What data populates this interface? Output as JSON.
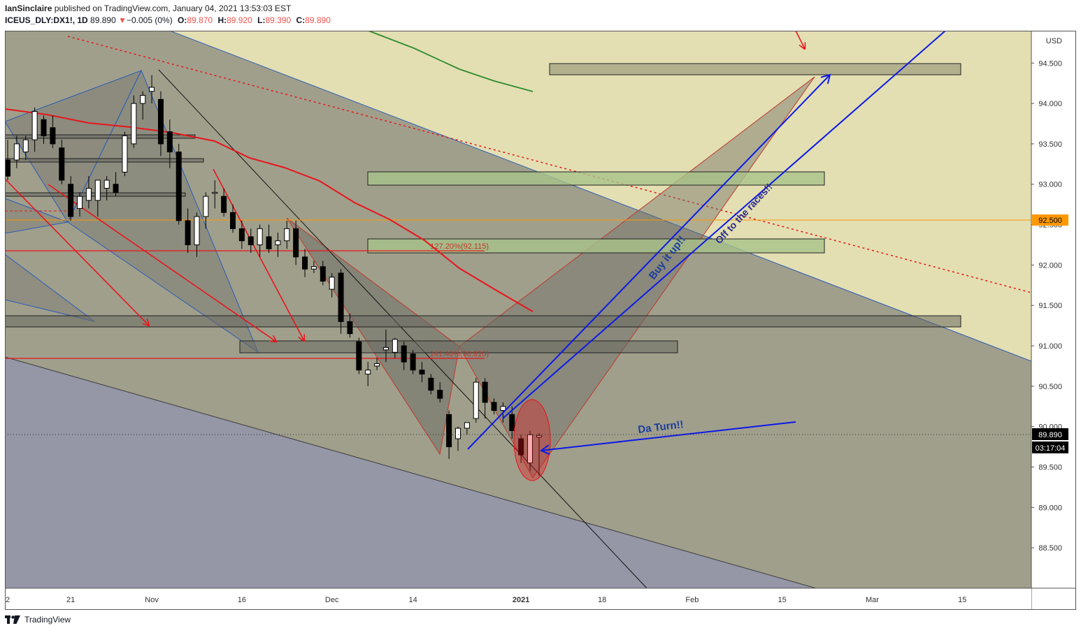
{
  "header": {
    "author": "IanSinclaire",
    "published_text": "published on TradingView.com, January 04, 2021 13:53:03 EST",
    "symbol": "ICEUS_DLY:DX1!, 1D",
    "last": "89.890",
    "change_arrow": "▼",
    "change": "−0.005 (0%)",
    "open_label": "O:",
    "open": "89.870",
    "high_label": "H:",
    "high": "89.920",
    "low_label": "L:",
    "low": "89.390",
    "close_label": "C:",
    "close": "89.890"
  },
  "footer": {
    "brand": "TradingView",
    "logo_icon": "tradingview-logo-icon"
  },
  "colors": {
    "up_candle": "#ffffff",
    "down_candle": "#000000",
    "price_badge": "#000000",
    "orange_line": "#ff9800",
    "red": "#e8151b",
    "blue": "#0c1ae8",
    "green_ma": "#2e8b2e"
  },
  "annotations": {
    "fib_1272": "127.20%(92.115)",
    "fib_1414": "141.40%(90.810)",
    "buy": "Buy it up!!",
    "races": "Off to the races!!",
    "turn": "Da Turn!!"
  },
  "chart_data": {
    "type": "candlestick",
    "currency": "USD",
    "ylim": [
      88.0,
      94.9
    ],
    "yticks": [
      88.5,
      89.0,
      89.5,
      90.0,
      90.5,
      91.0,
      91.5,
      92.0,
      92.5,
      93.0,
      93.5,
      94.0,
      94.5
    ],
    "ytick_labels": [
      "88.500",
      "89.000",
      "89.500",
      "90.000",
      "90.500",
      "91.000",
      "91.500",
      "92.000",
      "92.500",
      "93.000",
      "93.500",
      "94.000",
      "94.500"
    ],
    "xtick_labels": [
      "2",
      "21",
      "Nov",
      "16",
      "Dec",
      "14",
      "2021",
      "18",
      "Feb",
      "15",
      "Mar",
      "15"
    ],
    "xtick_days": [
      0,
      7,
      16,
      26,
      36,
      45,
      57,
      66,
      76,
      86,
      96,
      106
    ],
    "price_label": "89.890",
    "countdown": "03:17:04",
    "level_label": "92.500",
    "candles": [
      {
        "d": 0,
        "o": 93.3,
        "h": 93.55,
        "l": 93.05,
        "c": 93.1
      },
      {
        "d": 1,
        "o": 93.3,
        "h": 93.6,
        "l": 93.2,
        "c": 93.5
      },
      {
        "d": 2,
        "o": 93.4,
        "h": 93.6,
        "l": 93.3,
        "c": 93.55
      },
      {
        "d": 3,
        "o": 93.55,
        "h": 93.95,
        "l": 93.4,
        "c": 93.9
      },
      {
        "d": 4,
        "o": 93.8,
        "h": 93.85,
        "l": 93.5,
        "c": 93.6
      },
      {
        "d": 5,
        "o": 93.7,
        "h": 93.85,
        "l": 93.45,
        "c": 93.5
      },
      {
        "d": 6,
        "o": 93.45,
        "h": 93.55,
        "l": 93.0,
        "c": 93.05
      },
      {
        "d": 7,
        "o": 93.0,
        "h": 93.1,
        "l": 92.55,
        "c": 92.6
      },
      {
        "d": 8,
        "o": 92.7,
        "h": 92.9,
        "l": 92.6,
        "c": 92.85
      },
      {
        "d": 9,
        "o": 92.8,
        "h": 93.1,
        "l": 92.7,
        "c": 92.95
      },
      {
        "d": 10,
        "o": 92.8,
        "h": 93.05,
        "l": 92.6,
        "c": 93.05
      },
      {
        "d": 11,
        "o": 92.95,
        "h": 93.1,
        "l": 92.8,
        "c": 93.05
      },
      {
        "d": 12,
        "o": 93.0,
        "h": 93.15,
        "l": 92.85,
        "c": 92.9
      },
      {
        "d": 13,
        "o": 93.15,
        "h": 93.65,
        "l": 93.1,
        "c": 93.6
      },
      {
        "d": 14,
        "o": 93.5,
        "h": 94.1,
        "l": 93.45,
        "c": 94.0
      },
      {
        "d": 15,
        "o": 94.0,
        "h": 94.15,
        "l": 93.8,
        "c": 94.1
      },
      {
        "d": 16,
        "o": 94.15,
        "h": 94.35,
        "l": 94.0,
        "c": 94.2
      },
      {
        "d": 17,
        "o": 94.05,
        "h": 94.15,
        "l": 93.35,
        "c": 93.5
      },
      {
        "d": 18,
        "o": 93.65,
        "h": 93.8,
        "l": 93.2,
        "c": 93.4
      },
      {
        "d": 19,
        "o": 93.4,
        "h": 93.5,
        "l": 92.5,
        "c": 92.55
      },
      {
        "d": 20,
        "o": 92.55,
        "h": 92.7,
        "l": 92.15,
        "c": 92.25
      },
      {
        "d": 21,
        "o": 92.25,
        "h": 92.65,
        "l": 92.1,
        "c": 92.6
      },
      {
        "d": 22,
        "o": 92.6,
        "h": 92.9,
        "l": 92.45,
        "c": 92.85
      },
      {
        "d": 23,
        "o": 92.9,
        "h": 93.05,
        "l": 92.7,
        "c": 92.9
      },
      {
        "d": 24,
        "o": 92.85,
        "h": 92.95,
        "l": 92.6,
        "c": 92.65
      },
      {
        "d": 25,
        "o": 92.65,
        "h": 92.75,
        "l": 92.4,
        "c": 92.45
      },
      {
        "d": 26,
        "o": 92.45,
        "h": 92.55,
        "l": 92.2,
        "c": 92.3
      },
      {
        "d": 27,
        "o": 92.35,
        "h": 92.45,
        "l": 92.15,
        "c": 92.25
      },
      {
        "d": 28,
        "o": 92.25,
        "h": 92.5,
        "l": 92.1,
        "c": 92.45
      },
      {
        "d": 29,
        "o": 92.35,
        "h": 92.5,
        "l": 92.15,
        "c": 92.2
      },
      {
        "d": 30,
        "o": 92.25,
        "h": 92.4,
        "l": 92.1,
        "c": 92.3
      },
      {
        "d": 31,
        "o": 92.3,
        "h": 92.55,
        "l": 92.2,
        "c": 92.45
      },
      {
        "d": 32,
        "o": 92.45,
        "h": 92.55,
        "l": 92.0,
        "c": 92.1
      },
      {
        "d": 33,
        "o": 92.1,
        "h": 92.2,
        "l": 91.85,
        "c": 91.95
      },
      {
        "d": 34,
        "o": 91.95,
        "h": 92.05,
        "l": 91.9,
        "c": 91.98
      },
      {
        "d": 35,
        "o": 91.98,
        "h": 92.05,
        "l": 91.75,
        "c": 91.8
      },
      {
        "d": 36,
        "o": 91.7,
        "h": 91.9,
        "l": 91.6,
        "c": 91.85
      },
      {
        "d": 37,
        "o": 91.9,
        "h": 91.95,
        "l": 91.15,
        "c": 91.3
      },
      {
        "d": 38,
        "o": 91.3,
        "h": 91.4,
        "l": 91.1,
        "c": 91.15
      },
      {
        "d": 39,
        "o": 91.05,
        "h": 91.1,
        "l": 90.65,
        "c": 90.7
      },
      {
        "d": 40,
        "o": 90.65,
        "h": 90.8,
        "l": 90.5,
        "c": 90.7
      },
      {
        "d": 41,
        "o": 90.75,
        "h": 90.85,
        "l": 90.7,
        "c": 90.78
      },
      {
        "d": 42,
        "o": 90.95,
        "h": 91.2,
        "l": 90.8,
        "c": 90.98
      },
      {
        "d": 43,
        "o": 90.92,
        "h": 91.1,
        "l": 90.85,
        "c": 91.08
      },
      {
        "d": 44,
        "o": 91.0,
        "h": 91.05,
        "l": 90.7,
        "c": 90.8
      },
      {
        "d": 45,
        "o": 90.9,
        "h": 90.95,
        "l": 90.65,
        "c": 90.7
      },
      {
        "d": 46,
        "o": 90.7,
        "h": 90.8,
        "l": 90.55,
        "c": 90.65
      },
      {
        "d": 47,
        "o": 90.6,
        "h": 90.65,
        "l": 90.4,
        "c": 90.45
      },
      {
        "d": 48,
        "o": 90.45,
        "h": 90.55,
        "l": 90.3,
        "c": 90.35
      },
      {
        "d": 49,
        "o": 90.15,
        "h": 90.2,
        "l": 89.6,
        "c": 89.75
      },
      {
        "d": 50,
        "o": 89.85,
        "h": 90.0,
        "l": 89.7,
        "c": 89.98
      },
      {
        "d": 51,
        "o": 89.98,
        "h": 90.05,
        "l": 89.9,
        "c": 90.05
      },
      {
        "d": 52,
        "o": 90.1,
        "h": 90.6,
        "l": 90.05,
        "c": 90.55
      },
      {
        "d": 53,
        "o": 90.55,
        "h": 90.6,
        "l": 90.1,
        "c": 90.3
      },
      {
        "d": 54,
        "o": 90.3,
        "h": 90.35,
        "l": 90.15,
        "c": 90.2
      },
      {
        "d": 55,
        "o": 90.2,
        "h": 90.3,
        "l": 90.05,
        "c": 90.25
      },
      {
        "d": 56,
        "o": 90.15,
        "h": 90.25,
        "l": 89.85,
        "c": 89.95
      },
      {
        "d": 57,
        "o": 89.85,
        "h": 89.9,
        "l": 89.55,
        "c": 89.65
      },
      {
        "d": 58,
        "o": 89.55,
        "h": 89.95,
        "l": 89.45,
        "c": 89.9
      },
      {
        "d": 59,
        "o": 89.87,
        "h": 89.92,
        "l": 89.39,
        "c": 89.89
      }
    ]
  }
}
